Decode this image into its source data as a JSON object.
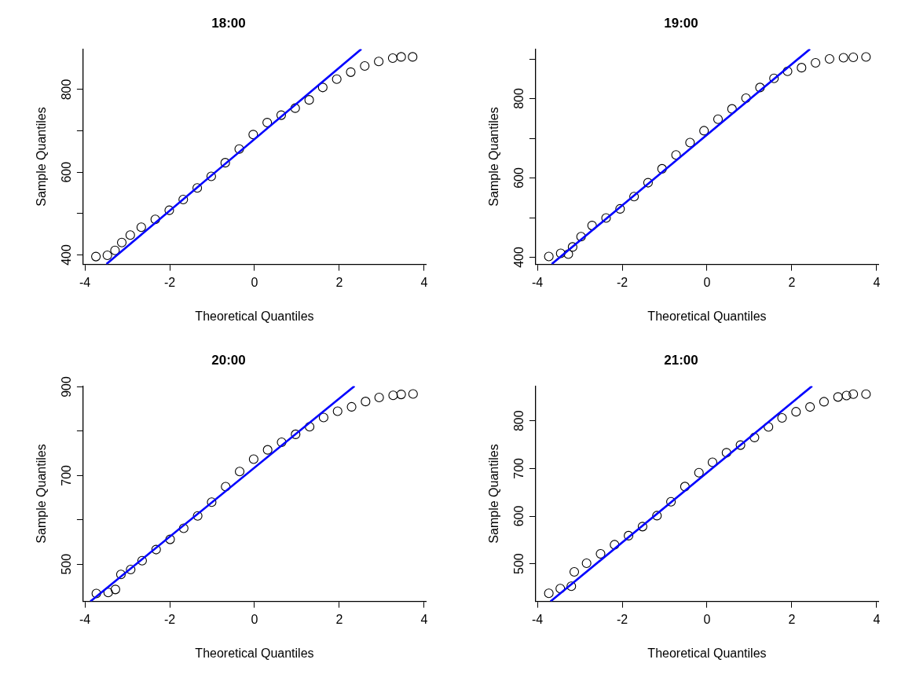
{
  "chart_data": [
    {
      "type": "scatter",
      "title": "18:00",
      "xlabel": "Theoretical Quantiles",
      "ylabel": "Sample Quantiles",
      "xlim": [
        -4.04,
        4.04
      ],
      "xticks": [
        -4,
        -2,
        0,
        2,
        4
      ],
      "ylim": [
        377,
        898
      ],
      "yticks": [
        400,
        {
          "value": 500,
          "label": null
        },
        600,
        {
          "value": 700,
          "label": null
        },
        800
      ],
      "grid": false,
      "series": [
        {
          "type": "scatter",
          "marker": "circle",
          "color": "#000000",
          "x": [
            -3.74,
            -3.47,
            -3.29,
            -3.13,
            -2.93,
            -2.67,
            -2.34,
            -2.01,
            -1.68,
            -1.35,
            -1.02,
            -0.69,
            -0.36,
            -0.03,
            0.3,
            0.63,
            0.96,
            1.29,
            1.61,
            1.94,
            2.27,
            2.6,
            2.93,
            3.26,
            3.46,
            3.73
          ],
          "values": [
            396,
            399,
            411,
            430,
            448,
            467,
            486,
            508,
            534,
            562,
            590,
            623,
            656,
            691,
            720,
            738,
            755,
            775,
            805,
            825,
            842,
            857,
            868,
            876,
            879,
            879
          ]
        },
        {
          "type": "line",
          "marker": "none",
          "color": "#0000ff",
          "x": [
            -3.49,
            2.52
          ],
          "values": [
            378,
            898
          ]
        }
      ]
    },
    {
      "type": "scatter",
      "title": "19:00",
      "xlabel": "Theoretical Quantiles",
      "ylabel": "Sample Quantiles",
      "xlim": [
        -4.04,
        4.04
      ],
      "xticks": [
        -4,
        -2,
        0,
        2,
        4
      ],
      "ylim": [
        382,
        925
      ],
      "yticks": [
        400,
        {
          "value": 500,
          "label": null
        },
        600,
        {
          "value": 700,
          "label": null
        },
        800,
        {
          "value": 900,
          "label": null
        }
      ],
      "grid": false,
      "series": [
        {
          "type": "scatter",
          "marker": "circle",
          "color": "#000000",
          "x": [
            -3.73,
            -3.45,
            -3.27,
            -3.17,
            -2.97,
            -2.71,
            -2.38,
            -2.05,
            -1.72,
            -1.39,
            -1.06,
            -0.73,
            -0.4,
            -0.07,
            0.26,
            0.59,
            0.92,
            1.25,
            1.58,
            1.9,
            2.23,
            2.56,
            2.89,
            3.22,
            3.45,
            3.75
          ],
          "values": [
            402,
            410,
            408,
            426,
            452,
            480,
            499,
            522,
            553,
            588,
            623,
            658,
            689,
            719,
            748,
            774,
            801,
            828,
            851,
            869,
            878,
            890,
            900,
            903,
            904,
            905
          ]
        },
        {
          "type": "line",
          "marker": "none",
          "color": "#0000ff",
          "x": [
            -3.66,
            2.43
          ],
          "values": [
            383,
            925
          ]
        }
      ]
    },
    {
      "type": "scatter",
      "title": "20:00",
      "xlabel": "Theoretical Quantiles",
      "ylabel": "Sample Quantiles",
      "xlim": [
        -4.04,
        4.04
      ],
      "xticks": [
        -4,
        -2,
        0,
        2,
        4
      ],
      "ylim": [
        416,
        902
      ],
      "yticks": [
        500,
        {
          "value": 600,
          "label": null
        },
        700,
        {
          "value": 800,
          "label": null
        },
        900
      ],
      "grid": false,
      "series": [
        {
          "type": "scatter",
          "marker": "circle",
          "color": "#000000",
          "x": [
            -3.73,
            -3.45,
            -3.28,
            -3.15,
            -2.92,
            -2.65,
            -2.32,
            -1.99,
            -1.67,
            -1.34,
            -1.01,
            -0.68,
            -0.35,
            -0.02,
            0.31,
            0.64,
            0.97,
            1.3,
            1.63,
            1.96,
            2.29,
            2.62,
            2.94,
            3.27,
            3.46,
            3.74
          ],
          "values": [
            434,
            436,
            443,
            477,
            488,
            508,
            533,
            556,
            581,
            609,
            640,
            675,
            709,
            737,
            758,
            775,
            793,
            810,
            831,
            845,
            855,
            867,
            876,
            881,
            883,
            884
          ]
        },
        {
          "type": "line",
          "marker": "none",
          "color": "#0000ff",
          "x": [
            -3.87,
            2.36
          ],
          "values": [
            416,
            902
          ]
        }
      ]
    },
    {
      "type": "scatter",
      "title": "21:00",
      "xlabel": "Theoretical Quantiles",
      "ylabel": "Sample Quantiles",
      "xlim": [
        -4.04,
        4.04
      ],
      "xticks": [
        -4,
        -2,
        0,
        2,
        4
      ],
      "ylim": [
        421,
        873
      ],
      "yticks": [
        500,
        600,
        700,
        800
      ],
      "grid": false,
      "series": [
        {
          "type": "scatter",
          "marker": "circle",
          "color": "#000000",
          "x": [
            -3.73,
            -3.46,
            -3.2,
            -3.13,
            -2.84,
            -2.51,
            -2.18,
            -1.85,
            -1.52,
            -1.18,
            -0.85,
            -0.52,
            -0.19,
            0.13,
            0.46,
            0.79,
            1.12,
            1.45,
            1.77,
            2.1,
            2.43,
            2.76,
            3.09,
            3.29,
            3.45,
            3.75
          ],
          "values": [
            438,
            448,
            453,
            483,
            501,
            521,
            540,
            559,
            578,
            601,
            630,
            662,
            691,
            713,
            733,
            749,
            765,
            787,
            806,
            819,
            829,
            840,
            850,
            853,
            856,
            856
          ]
        },
        {
          "type": "line",
          "marker": "none",
          "color": "#0000ff",
          "x": [
            -3.69,
            2.48
          ],
          "values": [
            421,
            873
          ]
        }
      ]
    }
  ]
}
